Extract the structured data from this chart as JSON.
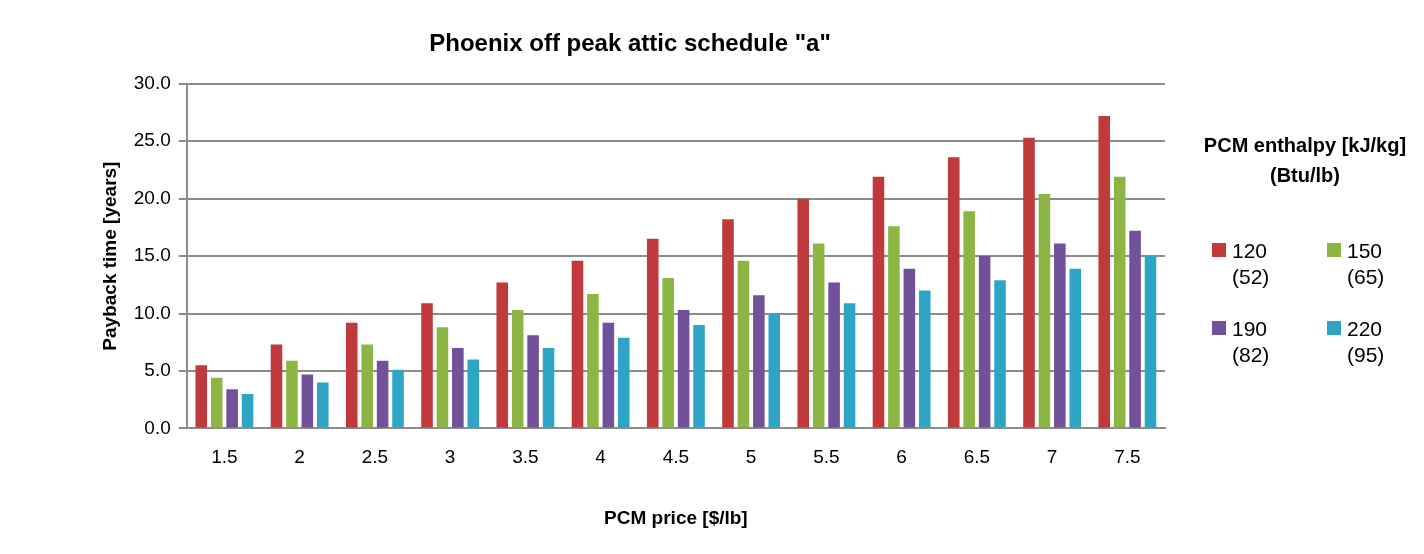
{
  "chart_data": {
    "type": "bar",
    "title": "Phoenix off peak attic schedule \"a\"",
    "xlabel": "PCM price [$/lb]",
    "ylabel": "Payback time [years]",
    "legend_title": "PCM enthalpy [kJ/kg] (Btu/lb)",
    "categories": [
      "1.5",
      "2",
      "2.5",
      "3",
      "3.5",
      "4",
      "4.5",
      "5",
      "5.5",
      "6",
      "6.5",
      "7",
      "7.5"
    ],
    "series": [
      {
        "name": "120 (52)",
        "color": "#c0393b",
        "values": [
          5.5,
          7.3,
          9.2,
          10.9,
          12.7,
          14.6,
          16.5,
          18.2,
          20.0,
          21.9,
          23.6,
          25.3,
          27.2
        ]
      },
      {
        "name": "150 (65)",
        "color": "#8db543",
        "values": [
          4.4,
          5.9,
          7.3,
          8.8,
          10.3,
          11.7,
          13.1,
          14.6,
          16.1,
          17.6,
          18.9,
          20.4,
          21.9
        ]
      },
      {
        "name": "190 (82)",
        "color": "#70519a",
        "values": [
          3.4,
          4.7,
          5.9,
          7.0,
          8.1,
          9.2,
          10.3,
          11.6,
          12.7,
          13.9,
          15.0,
          16.1,
          17.2
        ]
      },
      {
        "name": "220 (95)",
        "color": "#2fa5c6",
        "values": [
          3.0,
          4.0,
          5.1,
          6.0,
          7.0,
          7.9,
          9.0,
          10.0,
          10.9,
          12.0,
          12.9,
          13.9,
          15.0
        ]
      }
    ],
    "ylim": [
      0,
      30
    ],
    "yticks": [
      {
        "value": 0,
        "label": "0.0"
      },
      {
        "value": 5,
        "label": "5.0"
      },
      {
        "value": 10,
        "label": "10.0"
      },
      {
        "value": 15,
        "label": "15.0"
      },
      {
        "value": 20,
        "label": "20.0"
      },
      {
        "value": 25,
        "label": "25.0"
      },
      {
        "value": 30,
        "label": "30.0"
      }
    ],
    "grid": "y",
    "legend": "right"
  }
}
